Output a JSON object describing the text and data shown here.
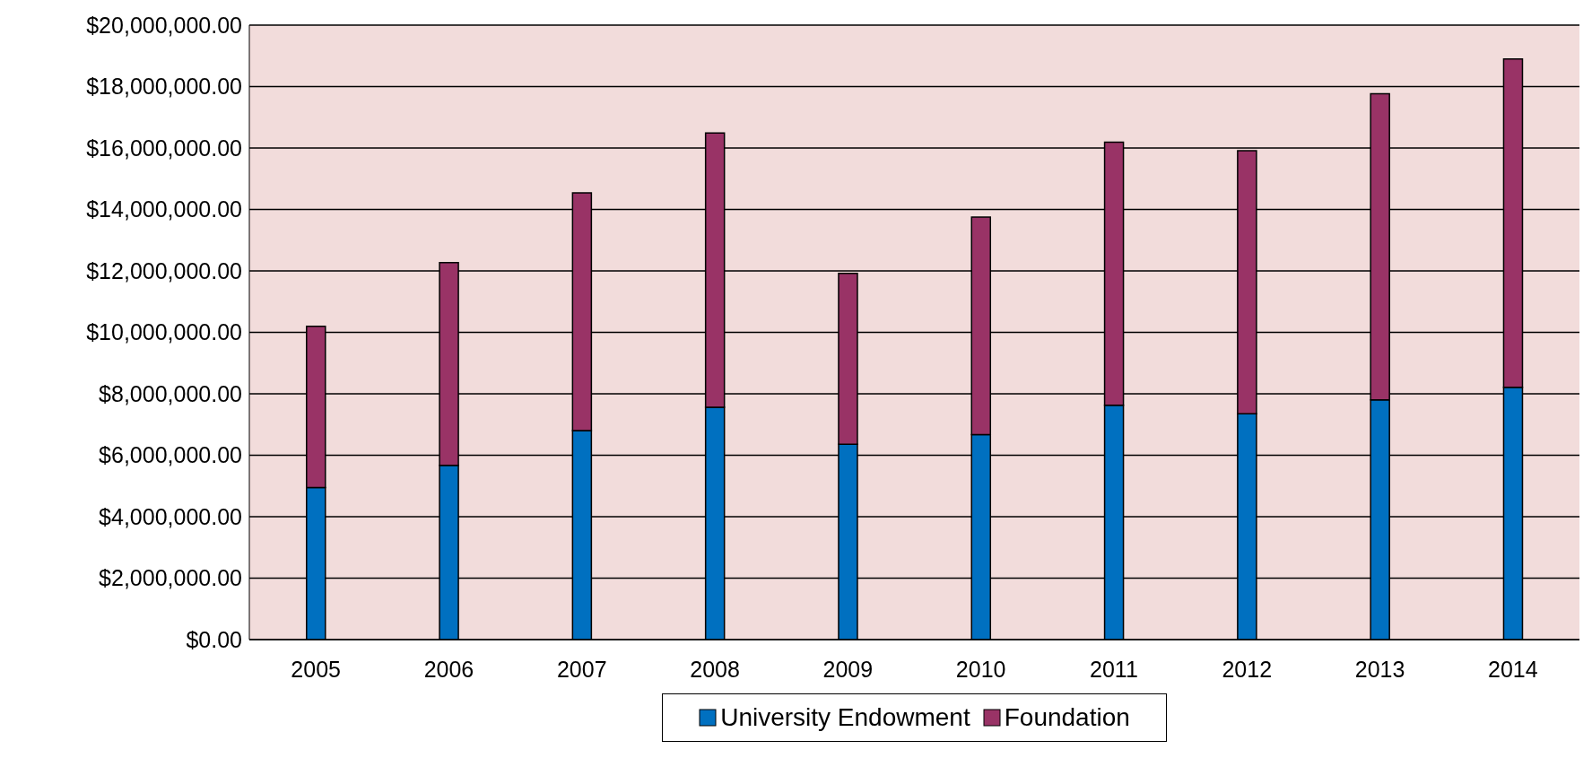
{
  "chart_data": {
    "type": "bar",
    "stacked": true,
    "categories": [
      "2005",
      "2006",
      "2007",
      "2008",
      "2009",
      "2010",
      "2011",
      "2012",
      "2013",
      "2014"
    ],
    "series": [
      {
        "name": "University Endowment",
        "color": "#0070c0",
        "values": [
          4950000,
          5670000,
          6800000,
          7560000,
          6360000,
          6670000,
          7630000,
          7350000,
          7800000,
          8210000
        ]
      },
      {
        "name": "Foundation",
        "color": "#993366",
        "values": [
          5250000,
          6600000,
          7740000,
          8930000,
          5560000,
          7080000,
          8560000,
          8560000,
          9970000,
          10690000
        ]
      }
    ],
    "ylim": [
      0,
      20000000
    ],
    "yticks": [
      {
        "value": 0,
        "label": "$0.00"
      },
      {
        "value": 2000000,
        "label": "$2,000,000.00"
      },
      {
        "value": 4000000,
        "label": "$4,000,000.00"
      },
      {
        "value": 6000000,
        "label": "$6,000,000.00"
      },
      {
        "value": 8000000,
        "label": "$8,000,000.00"
      },
      {
        "value": 10000000,
        "label": "$10,000,000.00"
      },
      {
        "value": 12000000,
        "label": "$12,000,000.00"
      },
      {
        "value": 14000000,
        "label": "$14,000,000.00"
      },
      {
        "value": 16000000,
        "label": "$16,000,000.00"
      },
      {
        "value": 18000000,
        "label": "$18,000,000.00"
      },
      {
        "value": 20000000,
        "label": "$20,000,000.00"
      }
    ],
    "grid": "y",
    "legend": "bottom"
  }
}
